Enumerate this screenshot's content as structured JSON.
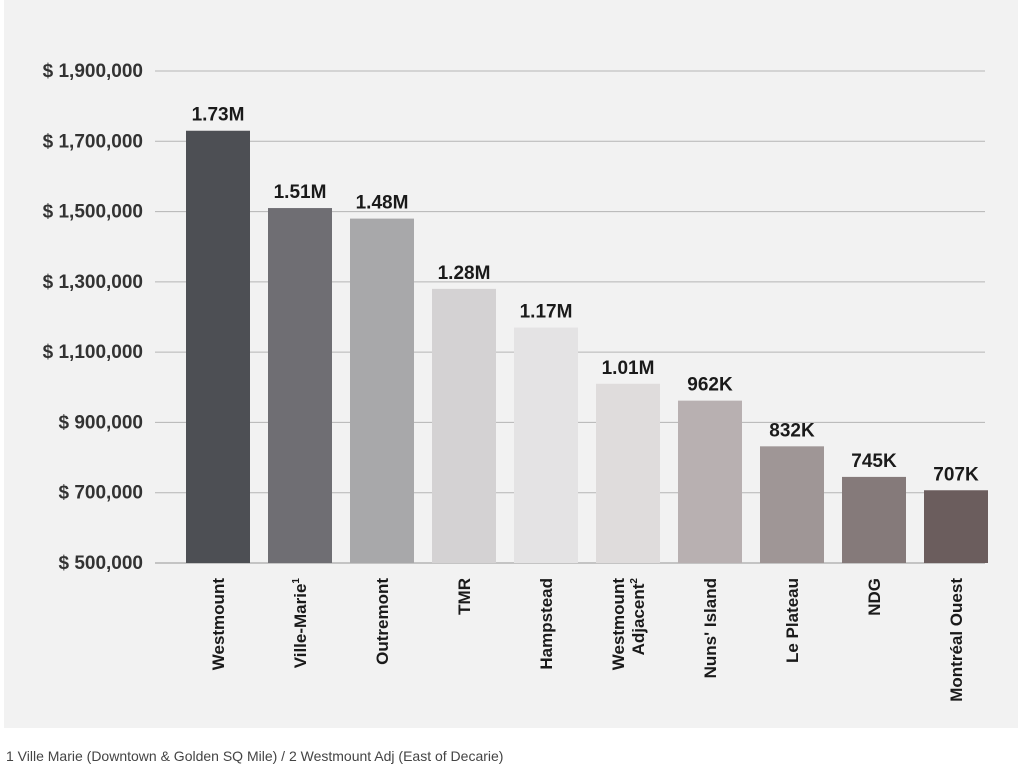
{
  "chart_data": {
    "type": "bar",
    "title": "",
    "xlabel": "",
    "ylabel": "",
    "ylim": [
      500000,
      1900000
    ],
    "yticks": [
      500000,
      700000,
      900000,
      1100000,
      1300000,
      1500000,
      1700000,
      1900000
    ],
    "ytick_labels": [
      "$ 500,000",
      "$ 700,000",
      "$ 900,000",
      "$ 1,100,000",
      "$ 1,300,000",
      "$ 1,500,000",
      "$ 1,700,000",
      "$ 1,900,000"
    ],
    "grid": true,
    "categories": [
      {
        "label": [
          "Westmount"
        ],
        "sup": ""
      },
      {
        "label": [
          "Ville-Marie"
        ],
        "sup": "1"
      },
      {
        "label": [
          "Outremont"
        ],
        "sup": ""
      },
      {
        "label": [
          "TMR"
        ],
        "sup": ""
      },
      {
        "label": [
          "Hampstead"
        ],
        "sup": ""
      },
      {
        "label": [
          "Westmount",
          "Adjacent"
        ],
        "sup": "2"
      },
      {
        "label": [
          "Nuns' Island"
        ],
        "sup": ""
      },
      {
        "label": [
          "Le Plateau"
        ],
        "sup": ""
      },
      {
        "label": [
          "NDG"
        ],
        "sup": ""
      },
      {
        "label": [
          "Montréal Ouest"
        ],
        "sup": ""
      }
    ],
    "values": [
      1730000,
      1510000,
      1480000,
      1280000,
      1170000,
      1010000,
      962000,
      832000,
      745000,
      707000
    ],
    "data_labels": [
      "1.73M",
      "1.51M",
      "1.48M",
      "1.28M",
      "1.17M",
      "1.01M",
      "962K",
      "832K",
      "745K",
      "707K"
    ],
    "colors": [
      "#4d4f54",
      "#6f6e73",
      "#a8a8aa",
      "#d4d2d3",
      "#e4e3e4",
      "#dfdcdc",
      "#b8b0b1",
      "#9f9696",
      "#857a7a",
      "#6b5d5d"
    ],
    "gridline_color": "#b5b5b5"
  },
  "footnote": "1 Ville Marie (Downtown & Golden SQ Mile)  /  2 Westmount Adj (East of Decarie)"
}
